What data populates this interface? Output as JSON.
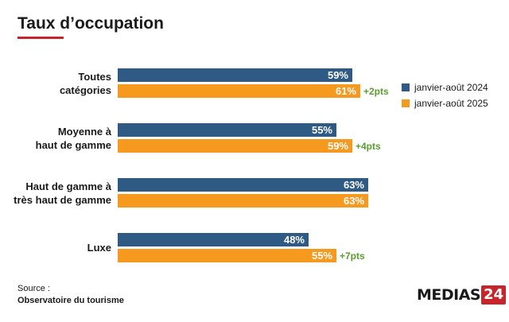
{
  "header": {
    "title": "Taux d’occupation"
  },
  "chart_data": {
    "type": "bar",
    "orientation": "horizontal",
    "categories": [
      [
        "Toutes",
        "catégories"
      ],
      [
        "Moyenne à",
        "haut de gamme"
      ],
      [
        "Haut de gamme à",
        "très haut de gamme"
      ],
      [
        "Luxe"
      ]
    ],
    "series": [
      {
        "name": "janvier-août 2024",
        "color": "#2f5a84",
        "values": [
          59,
          55,
          63,
          48
        ]
      },
      {
        "name": "janvier-août 2025",
        "color": "#f5991f",
        "values": [
          61,
          59,
          63,
          55
        ]
      }
    ],
    "value_suffix": "%",
    "annotations": [
      "+2pts",
      "+4pts",
      "",
      "+7pts"
    ],
    "annotation_color": "#5a9e2f",
    "legend_position": "right",
    "grid": false
  },
  "source": {
    "label": "Source :",
    "org": "Observatoire du tourisme"
  },
  "logo": {
    "text": "MEDIAS",
    "badge": "24"
  }
}
